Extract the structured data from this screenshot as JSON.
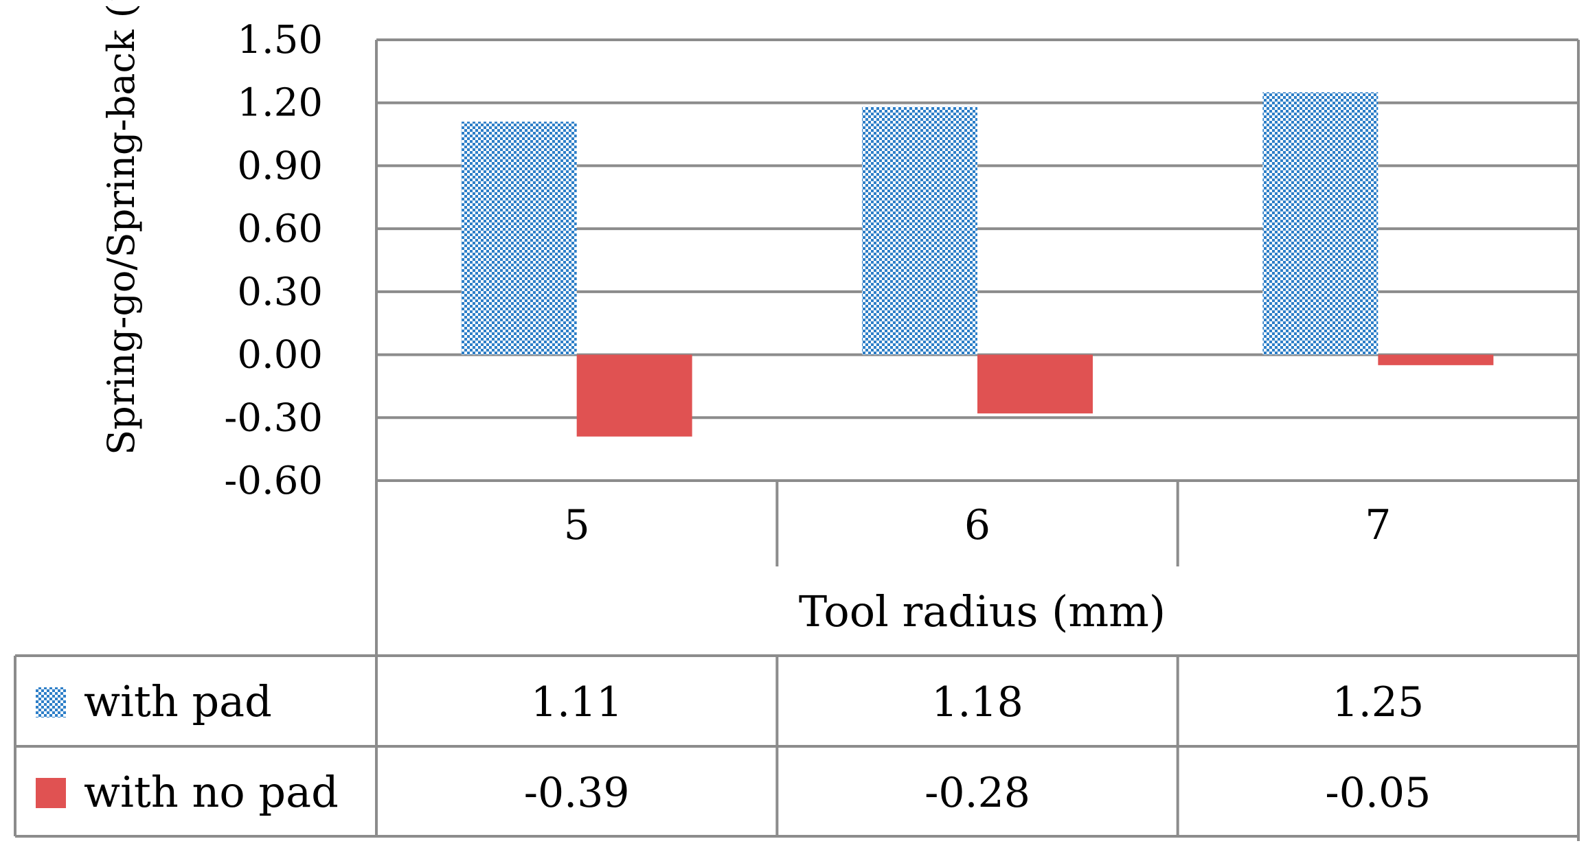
{
  "chart_data": {
    "type": "bar",
    "categories": [
      "5",
      "6",
      "7"
    ],
    "series": [
      {
        "name": "with pad",
        "values": [
          1.11,
          1.18,
          1.25
        ],
        "color": "#2e7fc8",
        "pattern": "checkerboard"
      },
      {
        "name": "with no pad",
        "values": [
          -0.39,
          -0.28,
          -0.05
        ],
        "color": "#e05252",
        "pattern": "solid"
      }
    ],
    "title": "",
    "xlabel": "Tool radius (mm)",
    "ylabel": "Spring-go/Spring-back (°)",
    "ylim": [
      -0.6,
      1.5
    ],
    "yticks": [
      "1.50",
      "1.20",
      "0.90",
      "0.60",
      "0.30",
      "0.00",
      "-0.30",
      "-0.60"
    ],
    "ytick_values": [
      1.5,
      1.2,
      0.9,
      0.6,
      0.3,
      0.0,
      -0.3,
      -0.6
    ],
    "grid": true,
    "legend": "data-table",
    "data_table": {
      "rows": [
        {
          "label": "with pad",
          "cells": [
            "1.11",
            "1.18",
            "1.25"
          ]
        },
        {
          "label": "with no pad",
          "cells": [
            "-0.39",
            "-0.28",
            "-0.05"
          ]
        }
      ]
    },
    "colors": {
      "grid": "#8c8c8c",
      "table_border": "#8c8c8c"
    }
  }
}
